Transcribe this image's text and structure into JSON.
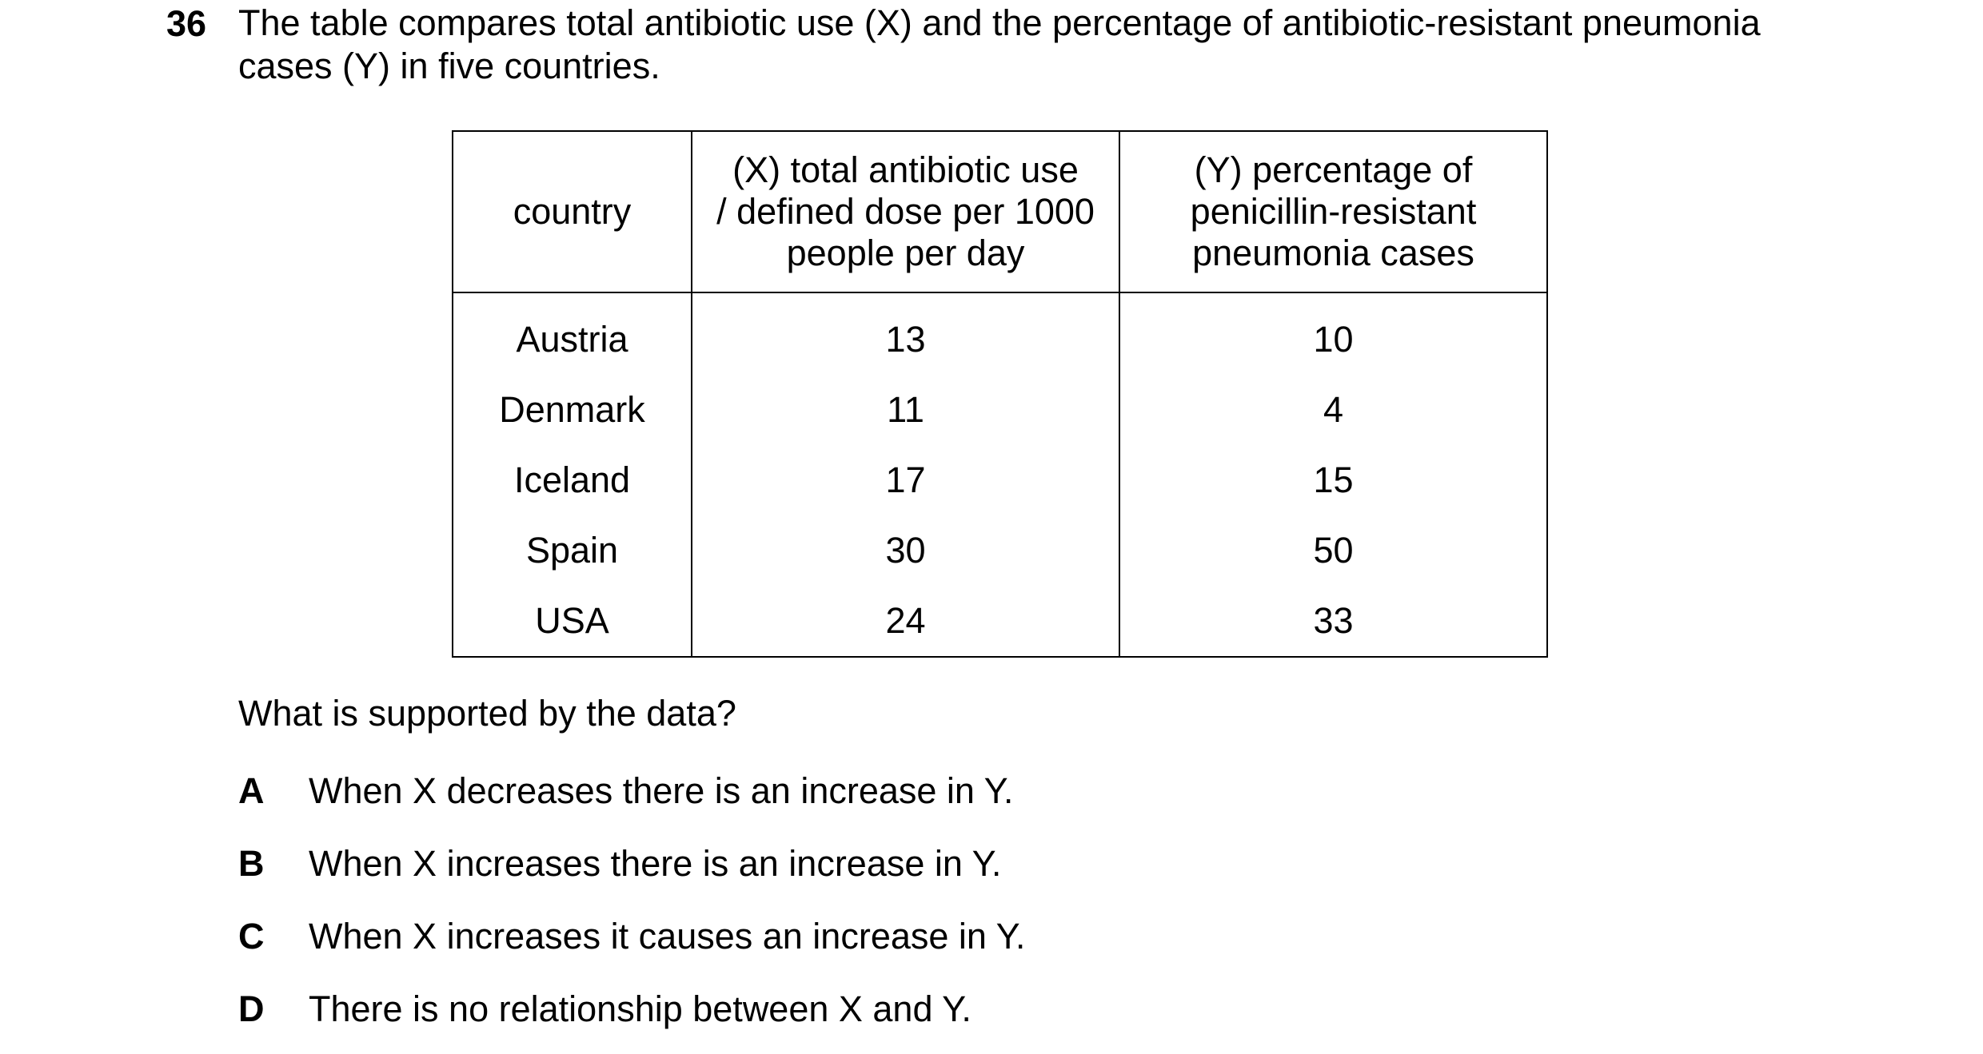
{
  "question": {
    "number": "36",
    "stem": "The table compares total antibiotic use (X) and the percentage of antibiotic-resistant pneumonia cases (Y) in five countries."
  },
  "table": {
    "headers": {
      "country": "country",
      "x_line1": "(X) total antibiotic use",
      "x_line2": "/ defined dose per 1000",
      "x_line3": "people per day",
      "y_line1": "(Y) percentage of",
      "y_line2": "penicillin-resistant",
      "y_line3": "pneumonia cases"
    },
    "rows": [
      {
        "country": "Austria",
        "x": "13",
        "y": "10"
      },
      {
        "country": "Denmark",
        "x": "11",
        "y": "4"
      },
      {
        "country": "Iceland",
        "x": "17",
        "y": "15"
      },
      {
        "country": "Spain",
        "x": "30",
        "y": "50"
      },
      {
        "country": "USA",
        "x": "24",
        "y": "33"
      }
    ]
  },
  "prompt": "What is supported by the data?",
  "options": [
    {
      "letter": "A",
      "text": "When X decreases there is an increase in Y."
    },
    {
      "letter": "B",
      "text": "When X increases there is an increase in Y."
    },
    {
      "letter": "C",
      "text": "When X increases it causes an increase in Y."
    },
    {
      "letter": "D",
      "text": "There is no relationship between X and Y."
    }
  ]
}
